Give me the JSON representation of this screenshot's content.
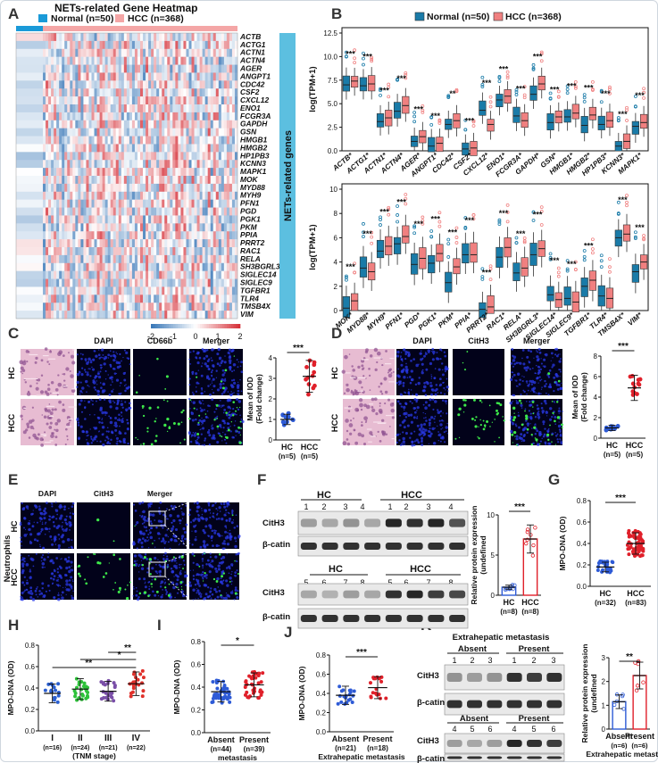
{
  "panel_letters": [
    "A",
    "B",
    "C",
    "D",
    "E",
    "F",
    "G",
    "H",
    "I",
    "J",
    "K"
  ],
  "colors": {
    "normal": "#1a7ba8",
    "hcc": "#f08080",
    "hc_dot": "#2e5bd6",
    "hcc_dot": "#e0202a",
    "teal": "#25a7c4",
    "heat_low": "#3a78b8",
    "heat_high": "#d6323a",
    "side_bar": "#5cbfe0"
  },
  "A": {
    "title": "NETs-related Gene Heatmap",
    "legend": [
      {
        "label": "Normal (n=50)",
        "color": "#1a9ad8"
      },
      {
        "label": "HCC (n=368)",
        "color": "#f4a6a6"
      }
    ],
    "side_label": "NETs-related genes",
    "genes": [
      "ACTB",
      "ACTG1",
      "ACTN1",
      "ACTN4",
      "AGER",
      "ANGPT1",
      "CDC42",
      "CSF2",
      "CXCL12",
      "ENO1",
      "FCGR3A",
      "GAPDH",
      "GSN",
      "HMGB1",
      "HMGB2",
      "HP1PB3",
      "KCNN3",
      "MAPK1",
      "MOK",
      "MYD88",
      "MYH9",
      "PFN1",
      "PGD",
      "PGK1",
      "PKM",
      "PPIA",
      "PRRT2",
      "RAC1",
      "RELA",
      "SH3BGRL3",
      "SIGLEC14",
      "SIGLEC9",
      "TGFBR1",
      "TLR4",
      "TMSB4X",
      "VIM"
    ],
    "colorbar_ticks": [
      "-2",
      "-1",
      "0",
      "1",
      "2"
    ]
  },
  "B": {
    "legend": [
      {
        "label": "Normal (n=50)"
      },
      {
        "label": "HCC (n=368)"
      }
    ],
    "ylabel": "log(TPM+1)",
    "top_yticks": [
      "0.0",
      "2.5",
      "5.0",
      "7.5",
      "10.0",
      "12.5"
    ],
    "bottom_yticks": [
      "0",
      "2",
      "4",
      "6",
      "8",
      "10"
    ],
    "top_genes": [
      "ACTB",
      "ACTG1",
      "ACTN1",
      "ACTN4",
      "AGER",
      "ANGPT1",
      "CDC42",
      "CSF2",
      "CXCL12",
      "ENO1",
      "FCGR3A",
      "GAPDH",
      "GSN",
      "HMGB1",
      "HMGB2",
      "HP1PB3",
      "KCNN3",
      "MAPK1"
    ],
    "top_sig": [
      "***",
      "***",
      "***",
      "***",
      "***",
      "***",
      "**",
      "***",
      "***",
      "***",
      "***",
      "***",
      "***",
      "***",
      "***",
      "***",
      "***",
      "***"
    ],
    "top_normal_median": [
      7.0,
      6.9,
      3.1,
      4.2,
      1.0,
      0.5,
      2.8,
      0.2,
      4.3,
      5.4,
      3.7,
      6.0,
      3.0,
      3.6,
      2.7,
      2.8,
      0.5,
      2.6
    ],
    "top_hcc_median": [
      7.4,
      7.1,
      3.5,
      4.8,
      1.5,
      0.8,
      3.2,
      0.3,
      2.8,
      5.8,
      3.2,
      7.1,
      3.6,
      4.0,
      3.8,
      3.2,
      1.0,
      3.0
    ],
    "bottom_genes": [
      "MOK",
      "MYD88",
      "MYH9",
      "PFN1",
      "PGD",
      "PGK1",
      "PKM",
      "PPIA",
      "PRRT2",
      "RAC1",
      "RELA",
      "SH3BGRL3",
      "SIGLEC14",
      "SIGLEC9",
      "TGFBR1",
      "TLR4",
      "TMSB4X",
      "VIM"
    ],
    "bottom_sig": [
      "***",
      "***",
      "***",
      "***",
      "***",
      "***",
      "***",
      "***",
      "***",
      "***",
      "***",
      "***",
      "***",
      "***",
      "***",
      "",
      "***",
      "***"
    ],
    "bottom_normal_median": [
      0.2,
      3.5,
      4.9,
      5.5,
      3.8,
      3.9,
      2.3,
      4.6,
      0.1,
      4.4,
      3.1,
      4.6,
      1.3,
      1.0,
      2.0,
      1.2,
      6.0,
      3.2
    ],
    "bottom_hcc_median": [
      0.8,
      3.2,
      5.3,
      6.1,
      4.3,
      4.7,
      3.6,
      4.6,
      0.3,
      5.2,
      3.5,
      5.1,
      0.9,
      0.7,
      2.5,
      1.0,
      6.3,
      4.0
    ]
  },
  "C": {
    "stains": [
      "DAPI",
      "CD66b",
      "Merger"
    ],
    "rows": [
      "HC",
      "HCC"
    ],
    "ylabel": "Mean of IOD (Fold change)",
    "yticks": [
      "0",
      "1",
      "2",
      "3",
      "4"
    ],
    "groups": [
      "HC",
      "HCC"
    ],
    "ns": [
      "(n=5)",
      "(n=5)"
    ],
    "means": [
      1.0,
      3.1
    ],
    "sig": "***"
  },
  "D": {
    "stains": [
      "DAPI",
      "CitH3",
      "Merger"
    ],
    "rows": [
      "HC",
      "HCC"
    ],
    "ylabel": "Mean of IOD (Fold change)",
    "yticks": [
      "0",
      "2",
      "4",
      "6",
      "8"
    ],
    "groups": [
      "HC",
      "HCC"
    ],
    "ns": [
      "(n=5)",
      "(n=5)"
    ],
    "means": [
      1.0,
      4.9
    ],
    "sig": "***"
  },
  "E": {
    "stains": [
      "DAPI",
      "CitH3",
      "Merger"
    ],
    "rows": [
      "HC",
      "HCC"
    ],
    "side": "Neutrophils"
  },
  "F": {
    "groups": [
      "HC",
      "HCC"
    ],
    "top_lanes": [
      "1",
      "2",
      "3",
      "4",
      "1",
      "2",
      "3",
      "4"
    ],
    "bottom_lanes": [
      "5",
      "6",
      "7",
      "8",
      "5",
      "6",
      "7",
      "8"
    ],
    "bands": [
      "CitH3",
      "β-catin"
    ],
    "bar": {
      "ylabel": "Relative protein expression",
      "yticks": [
        "0",
        "5",
        "10"
      ],
      "groups": [
        "HC",
        "HCC"
      ],
      "ns": [
        "(n=8)",
        "(n=8)"
      ],
      "means": [
        1.0,
        7.0
      ],
      "sig": "***"
    }
  },
  "G": {
    "ylabel": "MPO-DNA (OD)",
    "yticks": [
      "0.0",
      "0.2",
      "0.4",
      "0.6",
      "0.8"
    ],
    "groups": [
      "HC",
      "HCC"
    ],
    "ns": [
      "(n=32)",
      "(n=83)"
    ],
    "means": [
      0.18,
      0.4
    ],
    "sig": "***"
  },
  "H": {
    "ylabel": "MPO-DNA (OD)",
    "yticks": [
      "0.0",
      "0.2",
      "0.4",
      "0.6",
      "0.8"
    ],
    "groups": [
      "I",
      "II",
      "III",
      "IV"
    ],
    "ns": [
      "(n=16)",
      "(n=24)",
      "(n=21)",
      "(n=22)"
    ],
    "xlabel": "(TNM stage)",
    "means": [
      0.35,
      0.39,
      0.37,
      0.44
    ],
    "sig": [
      "*",
      "**",
      "**"
    ]
  },
  "I": {
    "ylabel": "MPO-DNA (OD)",
    "yticks": [
      "0.0",
      "0.2",
      "0.4",
      "0.6",
      "0.8"
    ],
    "groups": [
      "Absent",
      "Present"
    ],
    "ns": [
      "(n=44)",
      "(n=39)"
    ],
    "xlabel": "metastasis",
    "means": [
      0.36,
      0.42
    ],
    "sig": "*"
  },
  "J": {
    "ylabel": "MPO-DNA (OD)",
    "yticks": [
      "0.0",
      "0.2",
      "0.4",
      "0.6",
      "0.8"
    ],
    "groups": [
      "Absent",
      "Present"
    ],
    "ns": [
      "(n=21)",
      "(n=18)"
    ],
    "xlabel": "Extrahepatic metastasis",
    "means": [
      0.38,
      0.46
    ],
    "sig": "***"
  },
  "K": {
    "title": "Extrahepatic metastasis",
    "groups": [
      "Absent",
      "Present"
    ],
    "top_lanes": [
      "1",
      "2",
      "3",
      "1",
      "2",
      "3"
    ],
    "bottom_lanes": [
      "4",
      "5",
      "6",
      "4",
      "5",
      "6"
    ],
    "bands": [
      "CitH3",
      "β-catin"
    ],
    "bar": {
      "ylabel": "Relative protein expression",
      "yticks": [
        "0",
        "1",
        "2",
        "3"
      ],
      "groups": [
        "Absent",
        "Present"
      ],
      "ns": [
        "(n=6)",
        "(n=6)"
      ],
      "xlabel": "Extrahepatic metastasis",
      "means": [
        1.15,
        2.25
      ],
      "sig": "**"
    }
  }
}
